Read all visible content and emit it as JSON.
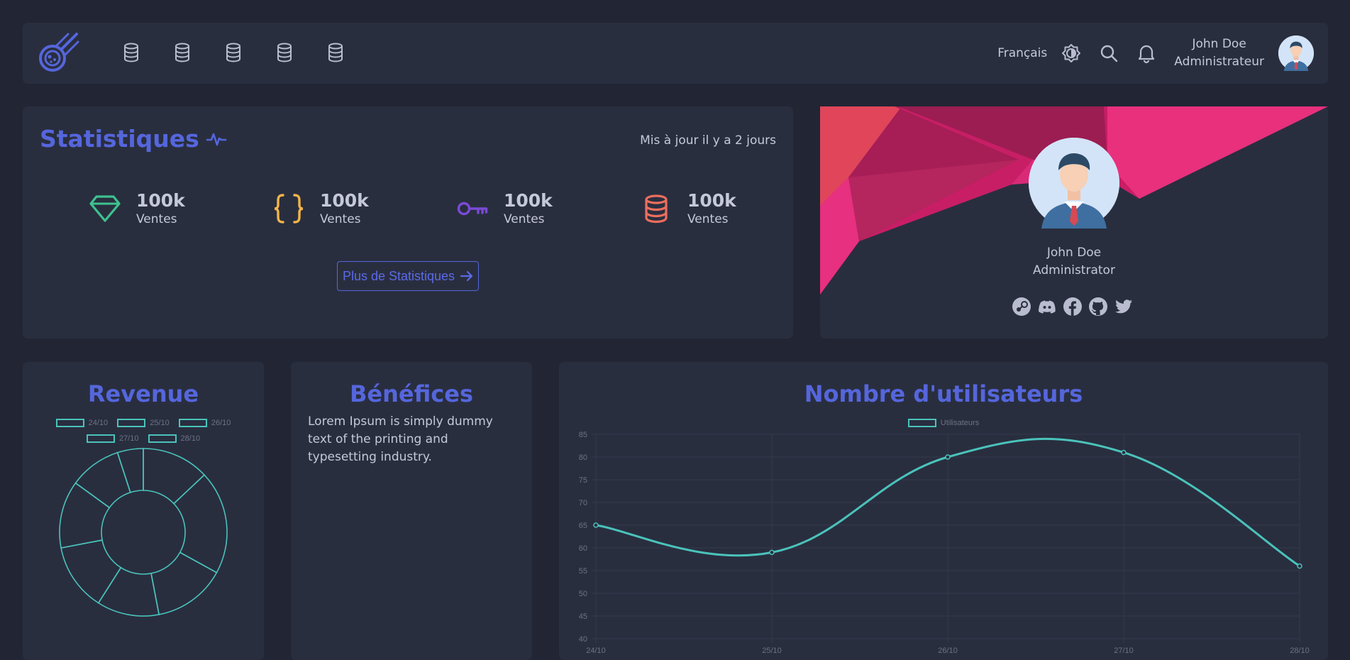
{
  "navbar": {
    "language": "Français",
    "user_name": "John Doe",
    "user_role": "Administrateur",
    "nav_icons": [
      "database-icon",
      "database-icon",
      "database-icon",
      "database-icon",
      "database-icon"
    ]
  },
  "stats": {
    "title": "Statistiques",
    "updated": "Mis à jour il y a 2 jours",
    "items": [
      {
        "value": "100k",
        "label": "Ventes",
        "icon": "diamond-icon",
        "color": "#3ec28f"
      },
      {
        "value": "100k",
        "label": "Ventes",
        "icon": "braces-icon",
        "color": "#f3b548"
      },
      {
        "value": "100k",
        "label": "Ventes",
        "icon": "key-icon",
        "color": "#7b4ad8"
      },
      {
        "value": "100k",
        "label": "Ventes",
        "icon": "database-icon",
        "color": "#ec6e5d"
      }
    ],
    "more_button": "Plus de Statistiques"
  },
  "profile": {
    "name": "John Doe",
    "role": "Administrator",
    "socials": [
      "steam-icon",
      "discord-icon",
      "facebook-icon",
      "github-icon",
      "twitter-icon"
    ]
  },
  "revenue": {
    "title": "Revenue"
  },
  "benefits": {
    "title": "Bénéfices",
    "text": "Lorem Ipsum is simply dummy text of the printing and typesetting industry."
  },
  "users_chart": {
    "title": "Nombre d'utilisateurs"
  },
  "colors": {
    "accent": "#5566dc",
    "teal": "#4ac3bb",
    "card": "#292e3f",
    "background": "#222533"
  },
  "chart_data": [
    {
      "type": "pie",
      "title": "Revenue",
      "categories": [
        "24/10",
        "25/10",
        "26/10",
        "27/10",
        "28/10",
        "",
        "",
        ""
      ],
      "values": [
        13,
        20,
        14,
        12,
        13,
        13,
        10,
        5
      ],
      "legend": [
        "24/10",
        "25/10",
        "26/10",
        "27/10",
        "28/10"
      ],
      "legend_position": "top"
    },
    {
      "type": "line",
      "title": "Nombre d'utilisateurs",
      "categories": [
        "24/10",
        "25/10",
        "26/10",
        "27/10",
        "28/10"
      ],
      "series": [
        {
          "name": "Utilisateurs",
          "values": [
            65,
            59,
            80,
            81,
            56
          ]
        }
      ],
      "ylim": [
        40,
        85
      ],
      "yticks": [
        40,
        45,
        50,
        55,
        60,
        65,
        70,
        75,
        80,
        85
      ],
      "grid": true,
      "legend_position": "top"
    }
  ]
}
